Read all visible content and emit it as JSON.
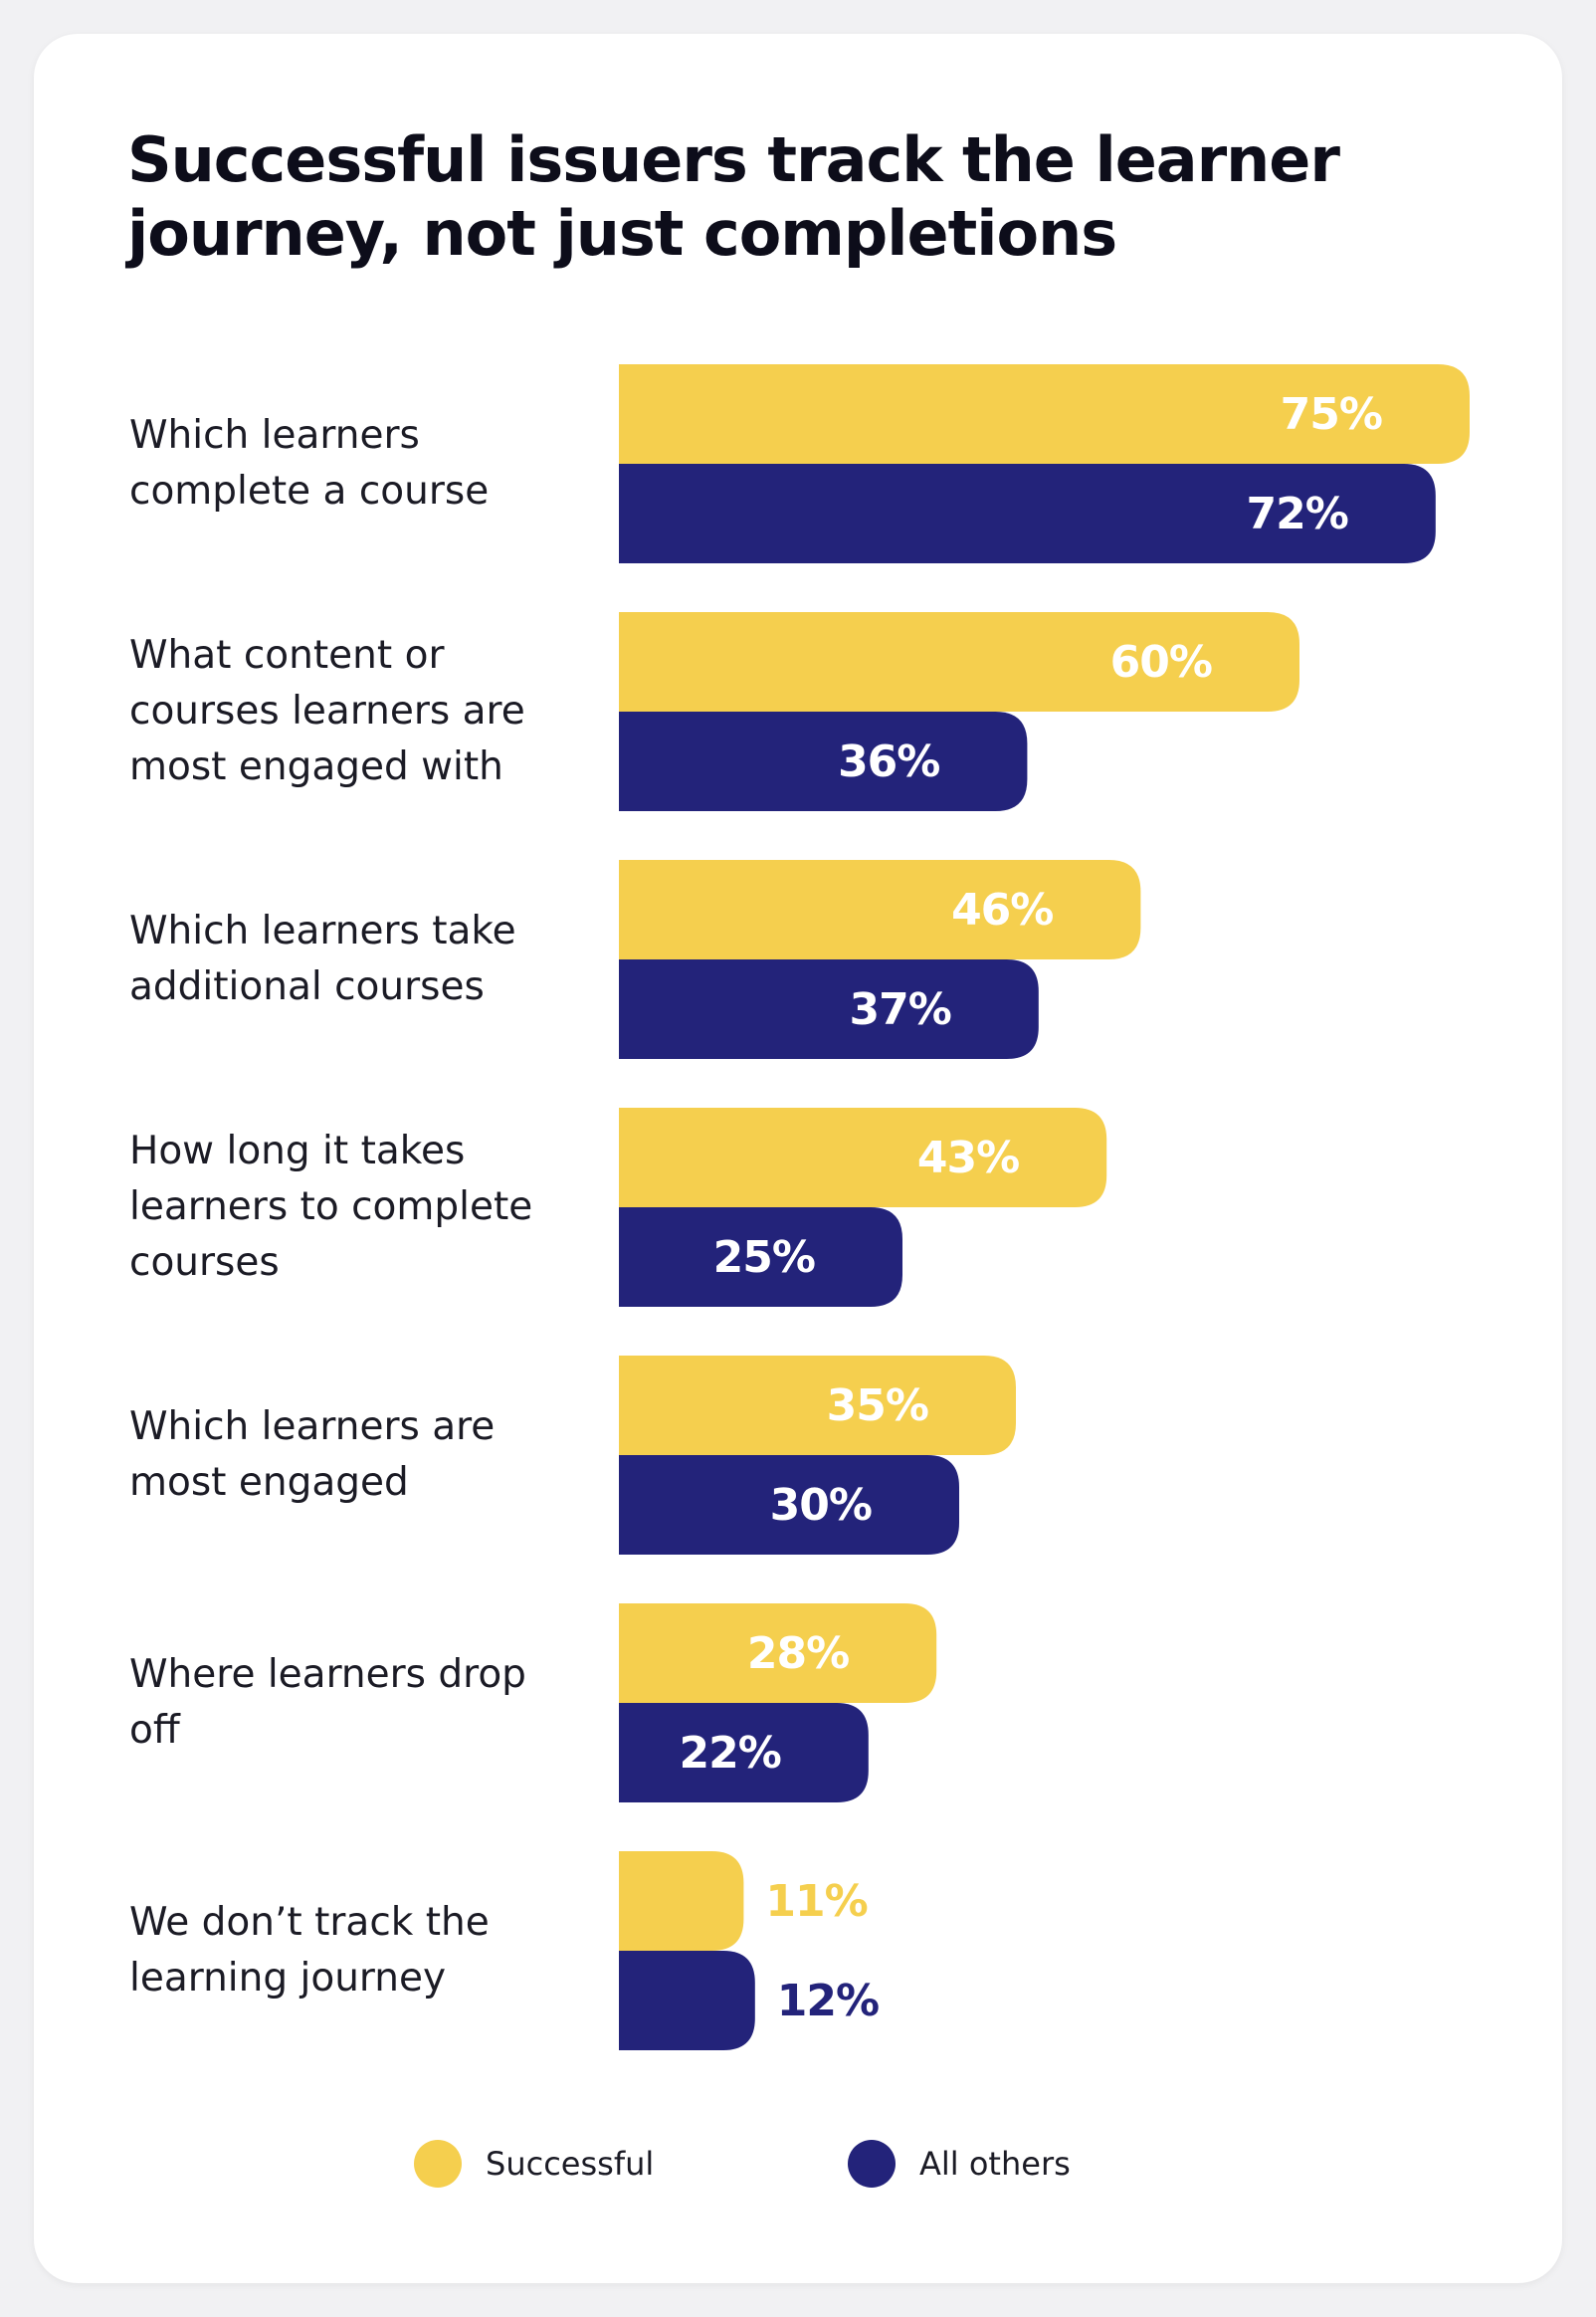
{
  "chart_data": {
    "type": "bar",
    "orientation": "horizontal",
    "title": "Successful issuers track the learner journey, not just completions",
    "categories": [
      "Which learners complete a course",
      "What content or courses learners are most engaged with",
      "Which learners take additional courses",
      "How long it takes learners to complete courses",
      "Which learners are most engaged",
      "Where learners drop off",
      "We don’t track the learning journey"
    ],
    "series": [
      {
        "name": "Successful",
        "color": "#f5cf4e",
        "values": [
          75,
          60,
          46,
          43,
          35,
          28,
          11
        ]
      },
      {
        "name": "All others",
        "color": "#23237a",
        "values": [
          72,
          36,
          37,
          25,
          30,
          22,
          12
        ]
      }
    ],
    "value_format": "percent",
    "legend_position": "bottom"
  }
}
